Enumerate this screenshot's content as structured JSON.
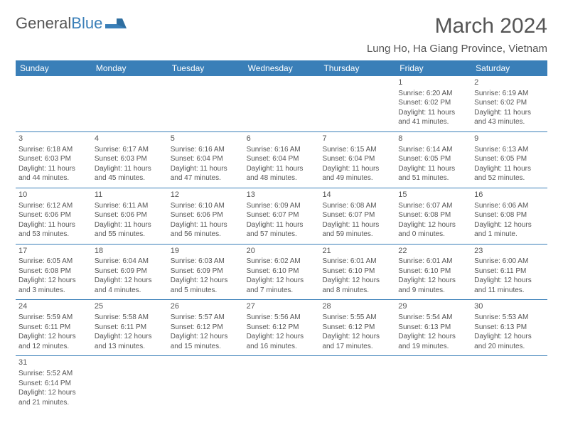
{
  "logo": {
    "text_general": "General",
    "text_blue": "Blue"
  },
  "header": {
    "month_title": "March 2024",
    "location": "Lung Ho, Ha Giang Province, Vietnam"
  },
  "colors": {
    "header_bg": "#3a7fb8",
    "header_text": "#ffffff",
    "rule": "#3a7fb8",
    "text": "#555555",
    "page_bg": "#ffffff"
  },
  "day_names": [
    "Sunday",
    "Monday",
    "Tuesday",
    "Wednesday",
    "Thursday",
    "Friday",
    "Saturday"
  ],
  "weeks": [
    [
      null,
      null,
      null,
      null,
      null,
      {
        "n": "1",
        "sr": "Sunrise: 6:20 AM",
        "ss": "Sunset: 6:02 PM",
        "d1": "Daylight: 11 hours",
        "d2": "and 41 minutes."
      },
      {
        "n": "2",
        "sr": "Sunrise: 6:19 AM",
        "ss": "Sunset: 6:02 PM",
        "d1": "Daylight: 11 hours",
        "d2": "and 43 minutes."
      }
    ],
    [
      {
        "n": "3",
        "sr": "Sunrise: 6:18 AM",
        "ss": "Sunset: 6:03 PM",
        "d1": "Daylight: 11 hours",
        "d2": "and 44 minutes."
      },
      {
        "n": "4",
        "sr": "Sunrise: 6:17 AM",
        "ss": "Sunset: 6:03 PM",
        "d1": "Daylight: 11 hours",
        "d2": "and 45 minutes."
      },
      {
        "n": "5",
        "sr": "Sunrise: 6:16 AM",
        "ss": "Sunset: 6:04 PM",
        "d1": "Daylight: 11 hours",
        "d2": "and 47 minutes."
      },
      {
        "n": "6",
        "sr": "Sunrise: 6:16 AM",
        "ss": "Sunset: 6:04 PM",
        "d1": "Daylight: 11 hours",
        "d2": "and 48 minutes."
      },
      {
        "n": "7",
        "sr": "Sunrise: 6:15 AM",
        "ss": "Sunset: 6:04 PM",
        "d1": "Daylight: 11 hours",
        "d2": "and 49 minutes."
      },
      {
        "n": "8",
        "sr": "Sunrise: 6:14 AM",
        "ss": "Sunset: 6:05 PM",
        "d1": "Daylight: 11 hours",
        "d2": "and 51 minutes."
      },
      {
        "n": "9",
        "sr": "Sunrise: 6:13 AM",
        "ss": "Sunset: 6:05 PM",
        "d1": "Daylight: 11 hours",
        "d2": "and 52 minutes."
      }
    ],
    [
      {
        "n": "10",
        "sr": "Sunrise: 6:12 AM",
        "ss": "Sunset: 6:06 PM",
        "d1": "Daylight: 11 hours",
        "d2": "and 53 minutes."
      },
      {
        "n": "11",
        "sr": "Sunrise: 6:11 AM",
        "ss": "Sunset: 6:06 PM",
        "d1": "Daylight: 11 hours",
        "d2": "and 55 minutes."
      },
      {
        "n": "12",
        "sr": "Sunrise: 6:10 AM",
        "ss": "Sunset: 6:06 PM",
        "d1": "Daylight: 11 hours",
        "d2": "and 56 minutes."
      },
      {
        "n": "13",
        "sr": "Sunrise: 6:09 AM",
        "ss": "Sunset: 6:07 PM",
        "d1": "Daylight: 11 hours",
        "d2": "and 57 minutes."
      },
      {
        "n": "14",
        "sr": "Sunrise: 6:08 AM",
        "ss": "Sunset: 6:07 PM",
        "d1": "Daylight: 11 hours",
        "d2": "and 59 minutes."
      },
      {
        "n": "15",
        "sr": "Sunrise: 6:07 AM",
        "ss": "Sunset: 6:08 PM",
        "d1": "Daylight: 12 hours",
        "d2": "and 0 minutes."
      },
      {
        "n": "16",
        "sr": "Sunrise: 6:06 AM",
        "ss": "Sunset: 6:08 PM",
        "d1": "Daylight: 12 hours",
        "d2": "and 1 minute."
      }
    ],
    [
      {
        "n": "17",
        "sr": "Sunrise: 6:05 AM",
        "ss": "Sunset: 6:08 PM",
        "d1": "Daylight: 12 hours",
        "d2": "and 3 minutes."
      },
      {
        "n": "18",
        "sr": "Sunrise: 6:04 AM",
        "ss": "Sunset: 6:09 PM",
        "d1": "Daylight: 12 hours",
        "d2": "and 4 minutes."
      },
      {
        "n": "19",
        "sr": "Sunrise: 6:03 AM",
        "ss": "Sunset: 6:09 PM",
        "d1": "Daylight: 12 hours",
        "d2": "and 5 minutes."
      },
      {
        "n": "20",
        "sr": "Sunrise: 6:02 AM",
        "ss": "Sunset: 6:10 PM",
        "d1": "Daylight: 12 hours",
        "d2": "and 7 minutes."
      },
      {
        "n": "21",
        "sr": "Sunrise: 6:01 AM",
        "ss": "Sunset: 6:10 PM",
        "d1": "Daylight: 12 hours",
        "d2": "and 8 minutes."
      },
      {
        "n": "22",
        "sr": "Sunrise: 6:01 AM",
        "ss": "Sunset: 6:10 PM",
        "d1": "Daylight: 12 hours",
        "d2": "and 9 minutes."
      },
      {
        "n": "23",
        "sr": "Sunrise: 6:00 AM",
        "ss": "Sunset: 6:11 PM",
        "d1": "Daylight: 12 hours",
        "d2": "and 11 minutes."
      }
    ],
    [
      {
        "n": "24",
        "sr": "Sunrise: 5:59 AM",
        "ss": "Sunset: 6:11 PM",
        "d1": "Daylight: 12 hours",
        "d2": "and 12 minutes."
      },
      {
        "n": "25",
        "sr": "Sunrise: 5:58 AM",
        "ss": "Sunset: 6:11 PM",
        "d1": "Daylight: 12 hours",
        "d2": "and 13 minutes."
      },
      {
        "n": "26",
        "sr": "Sunrise: 5:57 AM",
        "ss": "Sunset: 6:12 PM",
        "d1": "Daylight: 12 hours",
        "d2": "and 15 minutes."
      },
      {
        "n": "27",
        "sr": "Sunrise: 5:56 AM",
        "ss": "Sunset: 6:12 PM",
        "d1": "Daylight: 12 hours",
        "d2": "and 16 minutes."
      },
      {
        "n": "28",
        "sr": "Sunrise: 5:55 AM",
        "ss": "Sunset: 6:12 PM",
        "d1": "Daylight: 12 hours",
        "d2": "and 17 minutes."
      },
      {
        "n": "29",
        "sr": "Sunrise: 5:54 AM",
        "ss": "Sunset: 6:13 PM",
        "d1": "Daylight: 12 hours",
        "d2": "and 19 minutes."
      },
      {
        "n": "30",
        "sr": "Sunrise: 5:53 AM",
        "ss": "Sunset: 6:13 PM",
        "d1": "Daylight: 12 hours",
        "d2": "and 20 minutes."
      }
    ],
    [
      {
        "n": "31",
        "sr": "Sunrise: 5:52 AM",
        "ss": "Sunset: 6:14 PM",
        "d1": "Daylight: 12 hours",
        "d2": "and 21 minutes."
      },
      null,
      null,
      null,
      null,
      null,
      null
    ]
  ]
}
